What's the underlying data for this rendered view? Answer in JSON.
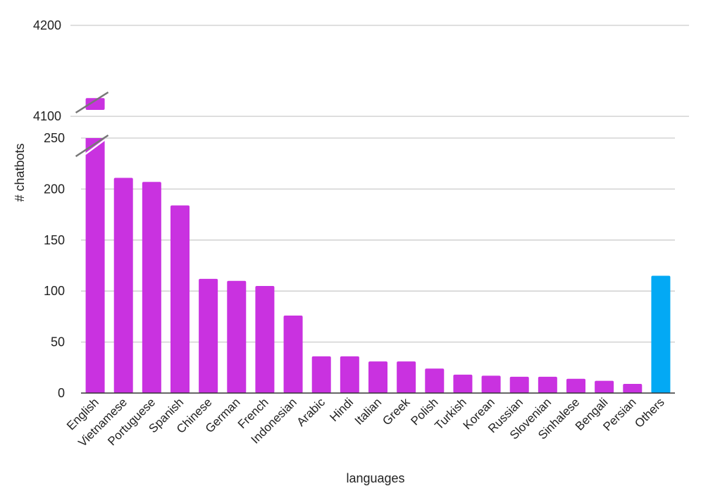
{
  "chart_data": {
    "type": "bar",
    "xlabel": "languages",
    "ylabel": "# chatbots",
    "categories": [
      "English",
      "Vietnamese",
      "Portuguese",
      "Spanish",
      "Chinese",
      "German",
      "French",
      "Indonesian",
      "Arabic",
      "Hindi",
      "Italian",
      "Greek",
      "Polish",
      "Turkish",
      "Korean",
      "Russian",
      "Slovenian",
      "Sinhalese",
      "Bengali",
      "Persian",
      "Others"
    ],
    "values": [
      4120,
      211,
      207,
      184,
      112,
      110,
      105,
      76,
      36,
      36,
      31,
      31,
      24,
      18,
      17,
      16,
      16,
      14,
      12,
      9,
      115
    ],
    "colors": [
      "#c932e0",
      "#c932e0",
      "#c932e0",
      "#c932e0",
      "#c932e0",
      "#c932e0",
      "#c932e0",
      "#c932e0",
      "#c932e0",
      "#c932e0",
      "#c932e0",
      "#c932e0",
      "#c932e0",
      "#c932e0",
      "#c932e0",
      "#c932e0",
      "#c932e0",
      "#c932e0",
      "#c932e0",
      "#c932e0",
      "#03a9f4"
    ],
    "lower_segment": {
      "ylim": [
        0,
        250
      ],
      "ticks": [
        0,
        50,
        100,
        150,
        200,
        250
      ]
    },
    "upper_segment": {
      "ylim": [
        4090,
        4200
      ],
      "ticks": [
        4100,
        4200
      ]
    },
    "broken_axis": true,
    "grid": true
  }
}
